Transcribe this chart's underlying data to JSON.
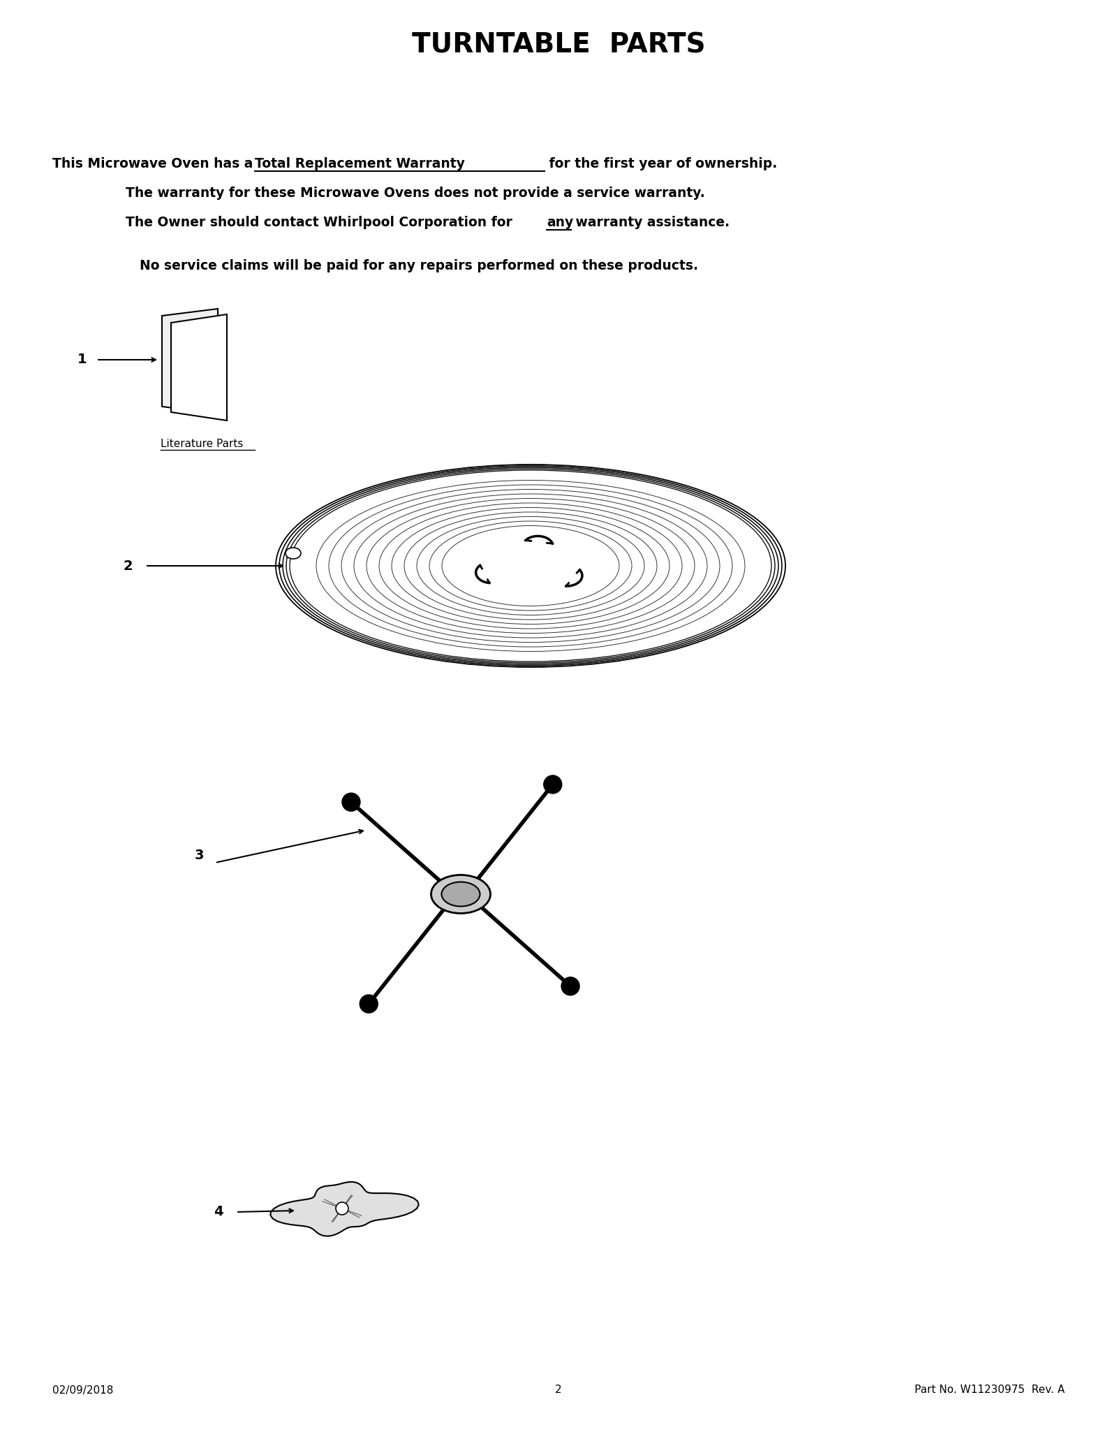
{
  "title": "TURNTABLE  PARTS",
  "title_fontsize": 28,
  "title_fontweight": "bold",
  "bg_color": "#ffffff",
  "text_color": "#000000",
  "warranty_line1_pre": "This Microwave Oven has a ",
  "warranty_line1_underline": "Total Replacement Warranty",
  "warranty_line1_post": " for the first year of ownership.",
  "warranty_line2": "The warranty for these Microwave Ovens does not provide a service warranty.",
  "warranty_line3_pre": "The Owner should contact Whirlpool Corporation for ",
  "warranty_line3_underline": "any",
  "warranty_line3_post": " warranty assistance.",
  "warranty_line4": "No service claims will be paid for any repairs performed on these products.",
  "footer_left": "02/09/2018",
  "footer_center": "2",
  "footer_right": "Part No. W11230975  Rev. A",
  "label1": "1",
  "label2": "2",
  "label3": "3",
  "label4": "4",
  "literature_label": "Literature Parts"
}
